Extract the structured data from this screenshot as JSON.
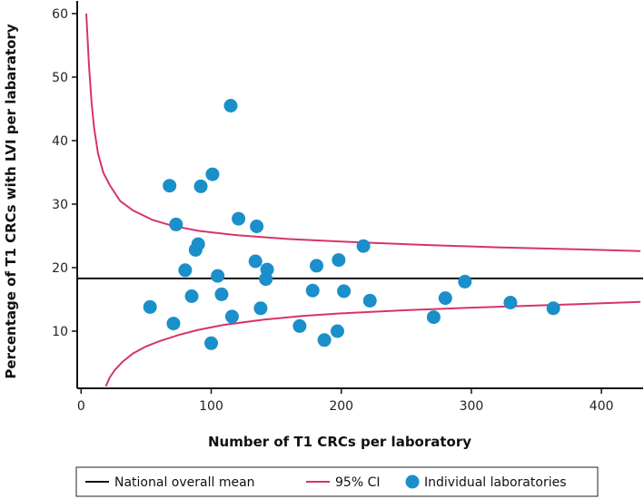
{
  "chart_data": {
    "type": "scatter",
    "xlabel": "Number of T1 CRCs per laboratory",
    "ylabel": "Percentage of T1 CRCs with LVI per labaratory",
    "xlim": [
      -3,
      432
    ],
    "ylim": [
      1,
      62
    ],
    "xticks": [
      0,
      100,
      200,
      300,
      400
    ],
    "yticks": [
      10,
      20,
      30,
      40,
      50,
      60
    ],
    "national_mean": 18.3,
    "colors": {
      "mean": "#111111",
      "ci": "#d6336c",
      "points": "#1a8fc9"
    },
    "ci_upper": [
      [
        4,
        60
      ],
      [
        6,
        52
      ],
      [
        8,
        46
      ],
      [
        10,
        42
      ],
      [
        13,
        38
      ],
      [
        17,
        35
      ],
      [
        22,
        33
      ],
      [
        30,
        30.5
      ],
      [
        40,
        29
      ],
      [
        55,
        27.5
      ],
      [
        70,
        26.6
      ],
      [
        90,
        25.8
      ],
      [
        120,
        25.1
      ],
      [
        160,
        24.5
      ],
      [
        200,
        24.1
      ],
      [
        260,
        23.6
      ],
      [
        320,
        23.2
      ],
      [
        380,
        22.9
      ],
      [
        430,
        22.6
      ]
    ],
    "ci_lower": [
      [
        19,
        1.3
      ],
      [
        22,
        2.7
      ],
      [
        26,
        3.9
      ],
      [
        32,
        5.2
      ],
      [
        40,
        6.5
      ],
      [
        50,
        7.6
      ],
      [
        60,
        8.4
      ],
      [
        75,
        9.4
      ],
      [
        90,
        10.2
      ],
      [
        110,
        11
      ],
      [
        140,
        11.8
      ],
      [
        170,
        12.4
      ],
      [
        200,
        12.8
      ],
      [
        250,
        13.3
      ],
      [
        300,
        13.7
      ],
      [
        360,
        14.1
      ],
      [
        430,
        14.6
      ]
    ],
    "series": [
      {
        "name": "Individual laboratories",
        "points": [
          [
            53,
            13.8
          ],
          [
            68,
            32.9
          ],
          [
            71,
            11.2
          ],
          [
            73,
            26.8
          ],
          [
            80,
            19.6
          ],
          [
            85,
            15.5
          ],
          [
            88,
            22.8
          ],
          [
            90,
            23.7
          ],
          [
            92,
            32.8
          ],
          [
            100,
            8.1
          ],
          [
            101,
            34.7
          ],
          [
            105,
            18.7
          ],
          [
            108,
            15.8
          ],
          [
            115,
            45.5
          ],
          [
            116,
            12.3
          ],
          [
            121,
            27.7
          ],
          [
            134,
            21
          ],
          [
            135,
            26.5
          ],
          [
            138,
            13.6
          ],
          [
            142,
            18.2
          ],
          [
            143,
            19.7
          ],
          [
            168,
            10.8
          ],
          [
            178,
            16.4
          ],
          [
            181,
            20.3
          ],
          [
            187,
            8.6
          ],
          [
            197,
            10
          ],
          [
            198,
            21.2
          ],
          [
            202,
            16.3
          ],
          [
            217,
            23.4
          ],
          [
            222,
            14.8
          ],
          [
            271,
            12.2
          ],
          [
            280,
            15.2
          ],
          [
            295,
            17.8
          ],
          [
            330,
            14.5
          ],
          [
            363,
            13.6
          ]
        ]
      }
    ],
    "legend": [
      {
        "key": "mean",
        "label": "National overall mean"
      },
      {
        "key": "ci",
        "label": "95% CI"
      },
      {
        "key": "points",
        "label": "Individual laboratories"
      }
    ]
  }
}
